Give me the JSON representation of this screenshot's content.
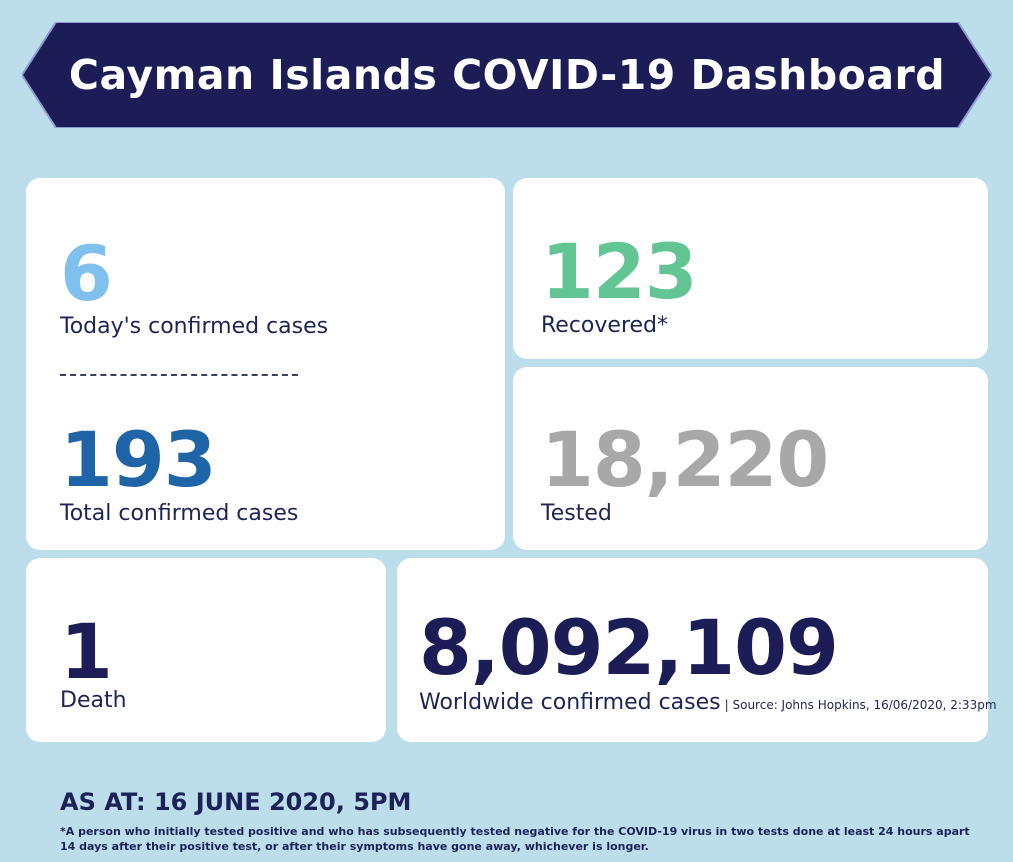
{
  "title": "Cayman Islands COVID-19 Dashboard",
  "colors": {
    "banner": "#1c1c57",
    "background": "#bcdeeb",
    "today": "#7fc0ec",
    "total": "#1f64a6",
    "recovered": "#63c594",
    "tested": "#a8a8a8",
    "death": "#1c1c57",
    "worldwide": "#1c1c57"
  },
  "today": {
    "value": "6",
    "label": "Today's confirmed cases"
  },
  "total": {
    "value": "193",
    "label": "Total confirmed cases"
  },
  "recovered": {
    "value": "123",
    "label": "Recovered*"
  },
  "tested": {
    "value": "18,220",
    "label": "Tested"
  },
  "death": {
    "value": "1",
    "label": "Death"
  },
  "worldwide": {
    "value": "8,092,109",
    "label": "Worldwide confirmed cases",
    "source": "| Source: Johns Hopkins, 16/06/2020, 2:33pm"
  },
  "as_at": "AS AT: 16 JUNE 2020, 5PM",
  "footnote": "*A person who initially tested positive and who has subsequently tested negative for the COVID-19 virus in two tests done at least 24 hours apart 14 days after their positive test, or after their symptoms have gone away, whichever is longer."
}
